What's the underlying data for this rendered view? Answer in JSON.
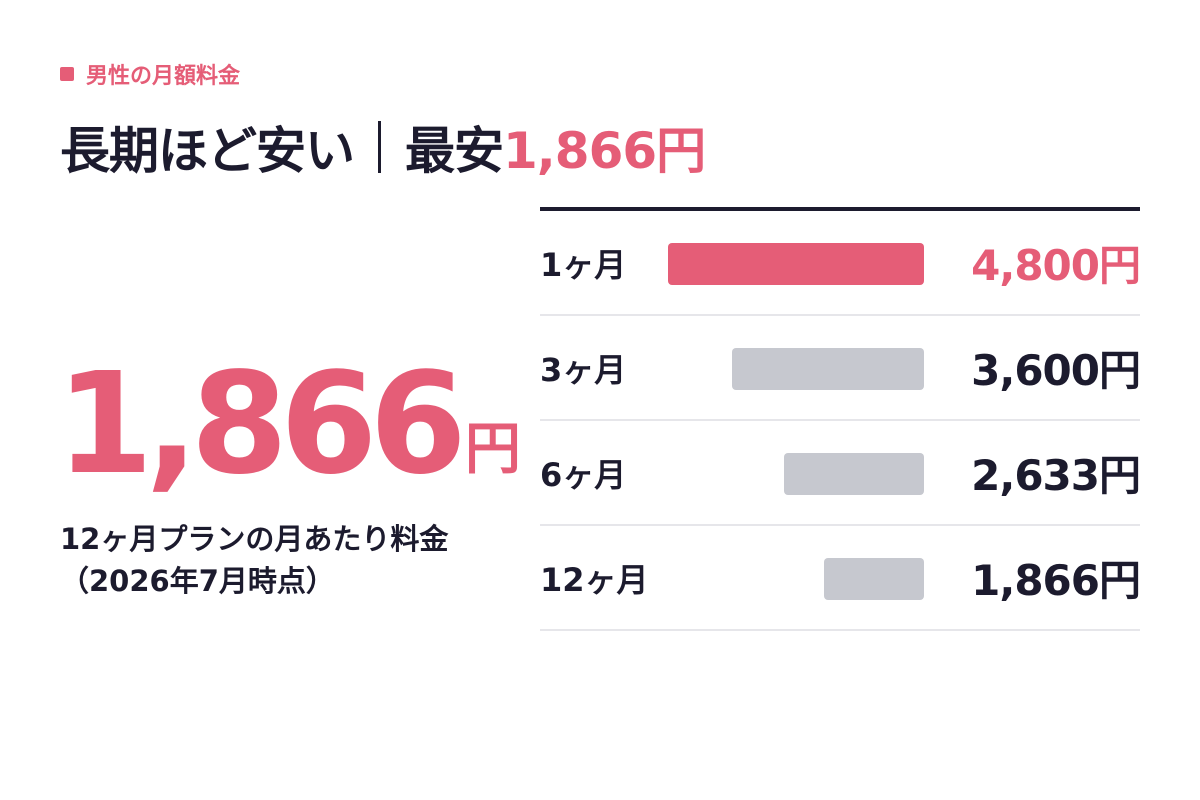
{
  "eyebrow": {
    "text": "男性の月額料金"
  },
  "headline": {
    "main": "長期ほど安い",
    "prefix": "最安",
    "accent": "1,866円"
  },
  "hero": {
    "number": "1,866",
    "unit": "円",
    "caption": "12ヶ月プランの月あたり料金（2026年7月時点）"
  },
  "colors": {
    "accent": "#e55d77",
    "text": "#1c1b2e",
    "bar_muted": "#c6c8cf",
    "divider": "#e6e6ea"
  },
  "chart_data": {
    "type": "bar",
    "orientation": "horizontal",
    "categories": [
      "1ヶ月",
      "3ヶ月",
      "6ヶ月",
      "12ヶ月"
    ],
    "values": [
      4800,
      3600,
      2633,
      1866
    ],
    "value_labels": [
      "4,800円",
      "3,600円",
      "2,633円",
      "1,866円"
    ],
    "highlight_index": 0,
    "grid": false,
    "legend": "none"
  }
}
